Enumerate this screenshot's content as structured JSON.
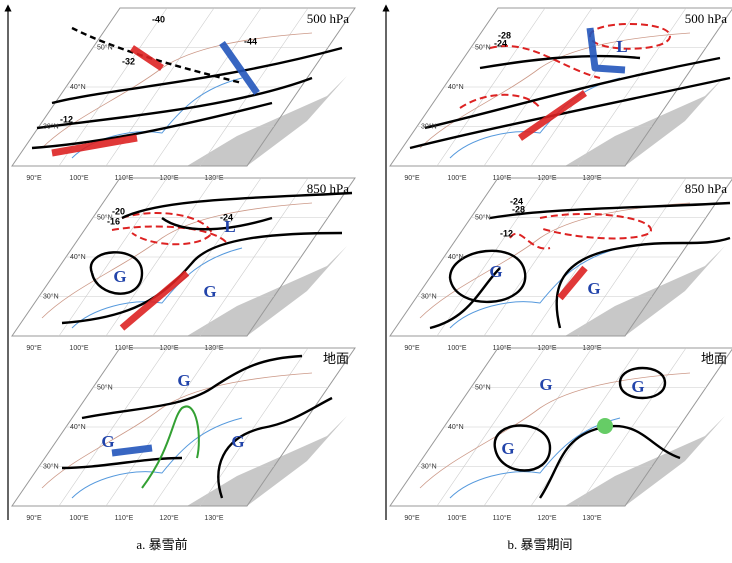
{
  "panels": [
    {
      "caption": "a. 暴雪前",
      "layers": [
        {
          "level": "500 hPa",
          "contour_labels": [
            "-40",
            "-44",
            "-32",
            "-12"
          ]
        },
        {
          "level": "850 hPa",
          "contour_labels": [
            "-20",
            "-16",
            "-24"
          ],
          "centers": [
            "L",
            "G",
            "G"
          ]
        },
        {
          "level": "地面",
          "centers": [
            "G",
            "G",
            "G"
          ]
        }
      ]
    },
    {
      "caption": "b. 暴雪期间",
      "layers": [
        {
          "level": "500 hPa",
          "contour_labels": [
            "-28",
            "-24"
          ],
          "centers": [
            "L"
          ]
        },
        {
          "level": "850 hPa",
          "contour_labels": [
            "-24",
            "-28",
            "-12"
          ],
          "centers": [
            "G",
            "G"
          ]
        },
        {
          "level": "地面",
          "centers": [
            "G",
            "G",
            "G"
          ]
        }
      ]
    }
  ],
  "grid_labels": {
    "lat": [
      "50°N",
      "40°N",
      "30°N"
    ],
    "lon": [
      "90°E",
      "100°E",
      "110°E",
      "120°E",
      "130°E"
    ]
  }
}
